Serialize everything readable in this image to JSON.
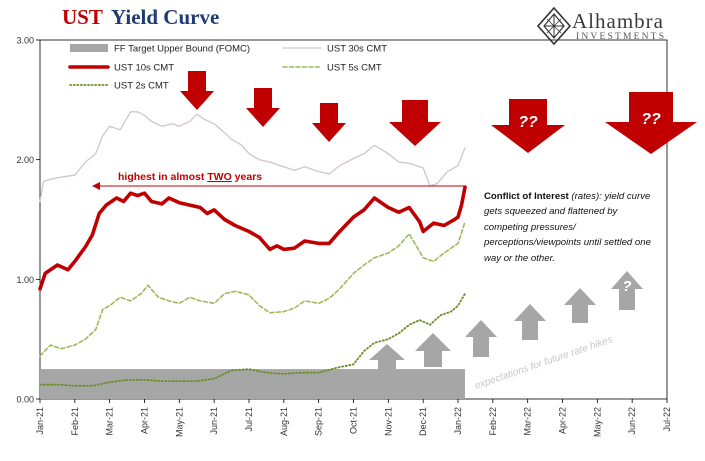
{
  "header": {
    "title_part1": "UST",
    "title_part2": "Yield Curve"
  },
  "brand": {
    "name": "Alhambra",
    "sub": "INVESTMENTS"
  },
  "annotations": {
    "highest": "highest in almost TWO years",
    "highest_pre": "highest in almost ",
    "highest_em": "TWO",
    "highest_post": " years",
    "expectations": "expectations for future rate hikes",
    "question": "??",
    "question_single": "?",
    "note_bold": "Conflict of Interest",
    "note_paren": " (rates)",
    "note_text": ": yield curve gets squeezed and flattened by competing pressures/ perceptions/viewpoints until settled one way or the other."
  },
  "chart_data": {
    "type": "line",
    "ylim": [
      0,
      3
    ],
    "yticks": [
      "0.00",
      "1.00",
      "2.00",
      "3.00"
    ],
    "xticks": [
      "Jan-21",
      "Feb-21",
      "Mar-21",
      "Apr-21",
      "May-21",
      "Jun-21",
      "Jul-21",
      "Aug-21",
      "Sep-21",
      "Oct-21",
      "Nov-21",
      "Dec-21",
      "Jan-22",
      "Feb-22",
      "Mar-22",
      "Apr-22",
      "May-22",
      "Jun-22",
      "Jul-22"
    ],
    "series": [
      {
        "name": "FF Target Upper Bound (FOMC)",
        "color": "#a6a6a6",
        "style": "area",
        "points": [
          [
            0,
            0.25
          ],
          [
            12.2,
            0.25
          ]
        ]
      },
      {
        "name": "UST 30s CMT",
        "color": "#d6c3c5",
        "style": "solid",
        "points": [
          [
            0,
            1.65
          ],
          [
            0.1,
            1.82
          ],
          [
            0.5,
            1.85
          ],
          [
            1.0,
            1.87
          ],
          [
            1.3,
            1.98
          ],
          [
            1.6,
            2.05
          ],
          [
            1.8,
            2.2
          ],
          [
            2.0,
            2.28
          ],
          [
            2.3,
            2.25
          ],
          [
            2.6,
            2.4
          ],
          [
            2.8,
            2.4
          ],
          [
            3.0,
            2.37
          ],
          [
            3.2,
            2.32
          ],
          [
            3.5,
            2.28
          ],
          [
            3.8,
            2.3
          ],
          [
            4.0,
            2.28
          ],
          [
            4.3,
            2.32
          ],
          [
            4.5,
            2.38
          ],
          [
            4.7,
            2.34
          ],
          [
            5.0,
            2.3
          ],
          [
            5.2,
            2.25
          ],
          [
            5.5,
            2.17
          ],
          [
            5.8,
            2.12
          ],
          [
            6.0,
            2.05
          ],
          [
            6.3,
            2.0
          ],
          [
            6.6,
            1.98
          ],
          [
            7.0,
            1.94
          ],
          [
            7.3,
            1.91
          ],
          [
            7.6,
            1.94
          ],
          [
            8.0,
            1.9
          ],
          [
            8.3,
            1.88
          ],
          [
            8.6,
            1.95
          ],
          [
            9.0,
            2.01
          ],
          [
            9.3,
            2.05
          ],
          [
            9.6,
            2.12
          ],
          [
            10.0,
            2.05
          ],
          [
            10.3,
            1.98
          ],
          [
            10.6,
            1.97
          ],
          [
            11.0,
            1.93
          ],
          [
            11.2,
            1.78
          ],
          [
            11.4,
            1.8
          ],
          [
            11.7,
            1.9
          ],
          [
            12.0,
            1.95
          ],
          [
            12.2,
            2.1
          ]
        ]
      },
      {
        "name": "UST 10s CMT",
        "color": "#c00000",
        "style": "thick",
        "points": [
          [
            0,
            0.92
          ],
          [
            0.15,
            1.05
          ],
          [
            0.5,
            1.12
          ],
          [
            0.8,
            1.08
          ],
          [
            1.0,
            1.15
          ],
          [
            1.3,
            1.27
          ],
          [
            1.5,
            1.37
          ],
          [
            1.7,
            1.55
          ],
          [
            1.9,
            1.62
          ],
          [
            2.2,
            1.68
          ],
          [
            2.4,
            1.65
          ],
          [
            2.6,
            1.72
          ],
          [
            2.8,
            1.7
          ],
          [
            3.0,
            1.72
          ],
          [
            3.2,
            1.65
          ],
          [
            3.5,
            1.63
          ],
          [
            3.7,
            1.68
          ],
          [
            4.0,
            1.64
          ],
          [
            4.3,
            1.62
          ],
          [
            4.6,
            1.6
          ],
          [
            4.8,
            1.55
          ],
          [
            5.0,
            1.58
          ],
          [
            5.3,
            1.5
          ],
          [
            5.6,
            1.45
          ],
          [
            6.0,
            1.4
          ],
          [
            6.3,
            1.35
          ],
          [
            6.6,
            1.25
          ],
          [
            6.8,
            1.28
          ],
          [
            7.0,
            1.25
          ],
          [
            7.3,
            1.26
          ],
          [
            7.6,
            1.32
          ],
          [
            8.0,
            1.3
          ],
          [
            8.3,
            1.3
          ],
          [
            8.6,
            1.4
          ],
          [
            9.0,
            1.52
          ],
          [
            9.3,
            1.58
          ],
          [
            9.6,
            1.68
          ],
          [
            10.0,
            1.6
          ],
          [
            10.3,
            1.56
          ],
          [
            10.6,
            1.6
          ],
          [
            10.9,
            1.48
          ],
          [
            11.0,
            1.4
          ],
          [
            11.3,
            1.47
          ],
          [
            11.6,
            1.45
          ],
          [
            11.9,
            1.5
          ],
          [
            12.0,
            1.52
          ],
          [
            12.1,
            1.62
          ],
          [
            12.2,
            1.77
          ]
        ]
      },
      {
        "name": "UST 5s CMT",
        "color": "#9bbb59",
        "style": "dashed",
        "points": [
          [
            0,
            0.36
          ],
          [
            0.3,
            0.45
          ],
          [
            0.6,
            0.42
          ],
          [
            1.0,
            0.45
          ],
          [
            1.3,
            0.5
          ],
          [
            1.6,
            0.58
          ],
          [
            1.8,
            0.75
          ],
          [
            2.0,
            0.78
          ],
          [
            2.3,
            0.85
          ],
          [
            2.6,
            0.82
          ],
          [
            2.9,
            0.88
          ],
          [
            3.1,
            0.95
          ],
          [
            3.4,
            0.85
          ],
          [
            3.7,
            0.82
          ],
          [
            4.0,
            0.8
          ],
          [
            4.3,
            0.85
          ],
          [
            4.6,
            0.82
          ],
          [
            5.0,
            0.8
          ],
          [
            5.3,
            0.88
          ],
          [
            5.6,
            0.9
          ],
          [
            6.0,
            0.87
          ],
          [
            6.3,
            0.78
          ],
          [
            6.6,
            0.72
          ],
          [
            7.0,
            0.73
          ],
          [
            7.3,
            0.76
          ],
          [
            7.6,
            0.82
          ],
          [
            8.0,
            0.8
          ],
          [
            8.3,
            0.84
          ],
          [
            8.6,
            0.92
          ],
          [
            9.0,
            1.05
          ],
          [
            9.3,
            1.12
          ],
          [
            9.6,
            1.18
          ],
          [
            10.0,
            1.22
          ],
          [
            10.3,
            1.28
          ],
          [
            10.6,
            1.38
          ],
          [
            10.8,
            1.28
          ],
          [
            11.0,
            1.18
          ],
          [
            11.3,
            1.15
          ],
          [
            11.6,
            1.22
          ],
          [
            12.0,
            1.3
          ],
          [
            12.2,
            1.48
          ]
        ]
      },
      {
        "name": "UST 2s CMT",
        "color": "#6b8e23",
        "style": "dotted",
        "points": [
          [
            0,
            0.12
          ],
          [
            0.5,
            0.12
          ],
          [
            1.0,
            0.11
          ],
          [
            1.5,
            0.11
          ],
          [
            2.0,
            0.14
          ],
          [
            2.5,
            0.16
          ],
          [
            3.0,
            0.16
          ],
          [
            3.5,
            0.15
          ],
          [
            4.0,
            0.15
          ],
          [
            4.5,
            0.15
          ],
          [
            5.0,
            0.17
          ],
          [
            5.5,
            0.24
          ],
          [
            6.0,
            0.25
          ],
          [
            6.5,
            0.22
          ],
          [
            7.0,
            0.21
          ],
          [
            7.5,
            0.22
          ],
          [
            8.0,
            0.22
          ],
          [
            8.5,
            0.26
          ],
          [
            9.0,
            0.29
          ],
          [
            9.3,
            0.4
          ],
          [
            9.6,
            0.47
          ],
          [
            10.0,
            0.5
          ],
          [
            10.3,
            0.55
          ],
          [
            10.6,
            0.62
          ],
          [
            10.9,
            0.66
          ],
          [
            11.2,
            0.62
          ],
          [
            11.5,
            0.7
          ],
          [
            11.8,
            0.73
          ],
          [
            12.0,
            0.78
          ],
          [
            12.2,
            0.88
          ]
        ]
      }
    ]
  }
}
